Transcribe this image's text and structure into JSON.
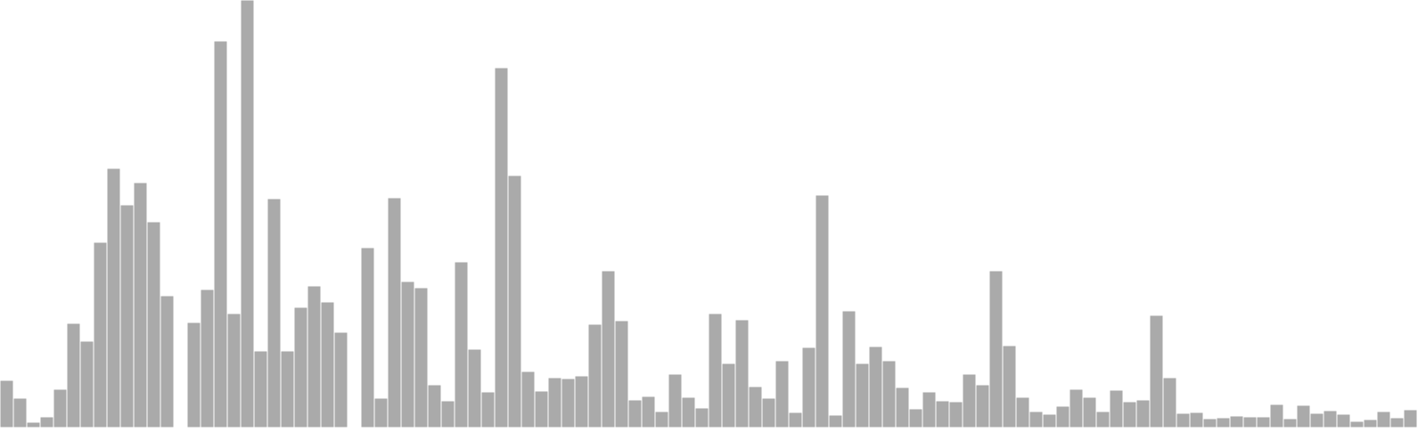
{
  "chart_data": {
    "type": "bar",
    "title": "",
    "xlabel": "",
    "ylabel": "",
    "ylim": [
      0,
      480
    ],
    "grid": false,
    "axes_visible": false,
    "bar_color": "#aaaaaa",
    "values": [
      53,
      33,
      6,
      12,
      43,
      117,
      97,
      208,
      291,
      250,
      275,
      231,
      148,
      0,
      118,
      155,
      434,
      128,
      480,
      86,
      257,
      86,
      135,
      159,
      141,
      107,
      0,
      202,
      33,
      258,
      164,
      157,
      48,
      30,
      186,
      88,
      40,
      404,
      283,
      63,
      41,
      56,
      55,
      58,
      116,
      176,
      120,
      31,
      35,
      18,
      60,
      34,
      22,
      128,
      72,
      121,
      46,
      33,
      75,
      17,
      90,
      261,
      14,
      131,
      72,
      91,
      75,
      45,
      21,
      40,
      30,
      29,
      60,
      48,
      176,
      92,
      34,
      18,
      15,
      24,
      43,
      34,
      18,
      42,
      29,
      31,
      126,
      56,
      16,
      17,
      10,
      11,
      13,
      12,
      12,
      26,
      10,
      25,
      16,
      19,
      15,
      7,
      9,
      18,
      11,
      20
    ]
  }
}
